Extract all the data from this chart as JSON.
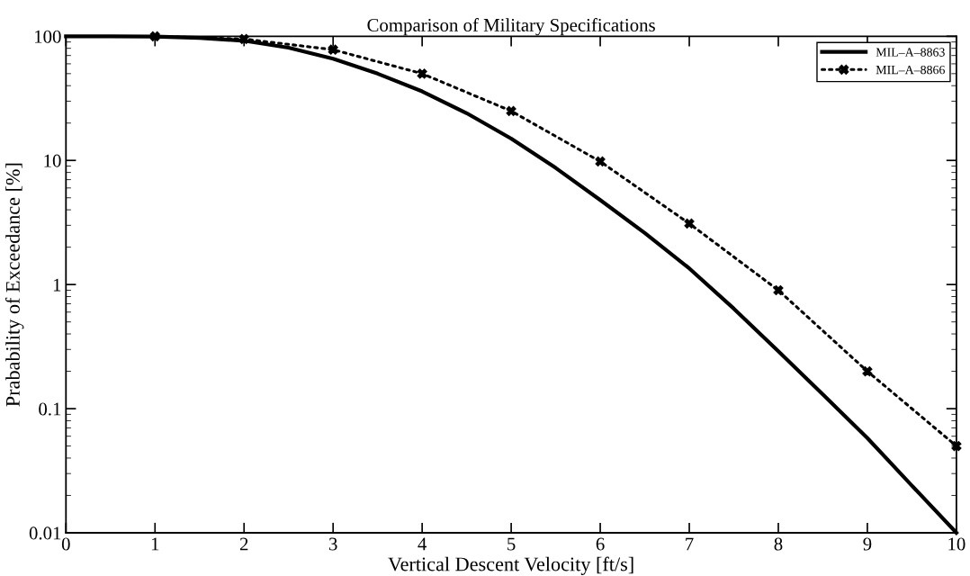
{
  "chart_data": {
    "type": "line",
    "title": "Comparison of Military Specifications",
    "xlabel": "Vertical Descent Velocity [ft/s]",
    "ylabel": "Prabability of Exceedance [%]",
    "log": "y",
    "xlim": [
      0,
      10
    ],
    "xticks": [
      0,
      1,
      2,
      3,
      4,
      5,
      6,
      7,
      8,
      9,
      10
    ],
    "ylim": [
      0.01,
      100
    ],
    "yticks": [
      0.01,
      0.1,
      1,
      10,
      100
    ],
    "grid": false,
    "legend": "top right",
    "series": [
      {
        "name": "MIL–A–8863",
        "color": "#000000",
        "line_style": "solid",
        "marker": "none",
        "x": [
          0,
          0.5,
          1,
          1.5,
          2,
          2.5,
          3,
          3.5,
          4,
          4.5,
          5,
          5.5,
          6,
          6.5,
          7,
          7.5,
          8,
          8.5,
          9,
          9.5,
          10
        ],
        "values": [
          100,
          100,
          99.5,
          97,
          92,
          81,
          66,
          50,
          36,
          24,
          15,
          8.7,
          4.8,
          2.6,
          1.35,
          0.64,
          0.29,
          0.13,
          0.058,
          0.024,
          0.01
        ]
      },
      {
        "name": "MIL–A–8866",
        "color": "#000000",
        "line_style": "dotted",
        "marker": "cross",
        "x": [
          1,
          2,
          3,
          4,
          5,
          6,
          7,
          8,
          9,
          10
        ],
        "values": [
          100,
          95,
          78,
          50,
          25,
          9.8,
          3.1,
          0.9,
          0.2,
          0.05
        ]
      }
    ]
  }
}
